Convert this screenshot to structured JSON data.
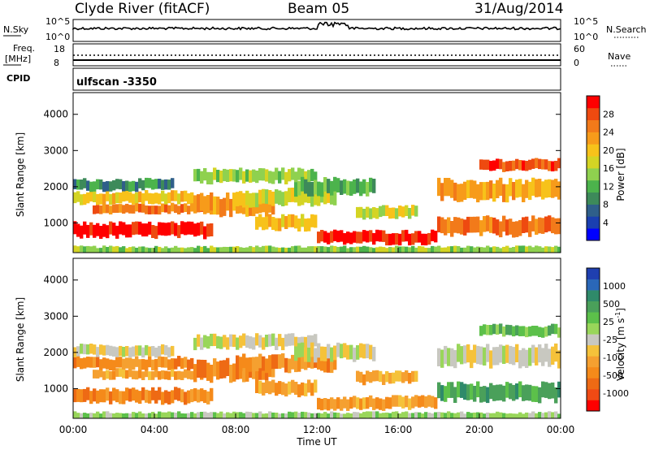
{
  "header": {
    "station": "Clyde River (fitACF)",
    "beam": "Beam 05",
    "date": "31/Aug/2014"
  },
  "panels": {
    "nsky_label": "N.Sky",
    "nsearch_label": "N.Search",
    "count_ticks": [
      "10^5",
      "10^0"
    ],
    "freq_label_1": "Freq.",
    "freq_label_2": "[MHz]",
    "freq_ticks": [
      "18",
      "8"
    ],
    "nave_label": "Nave",
    "nave_ticks": [
      "60",
      "0"
    ],
    "cpid_label": "CPID",
    "cpid_value": "ulfscan -3350"
  },
  "chart_data": [
    {
      "type": "heatmap",
      "name": "power",
      "ylabel": "Slant Range [km]",
      "yticks": [
        1000,
        2000,
        3000,
        4000
      ],
      "ylim": [
        180,
        4600
      ],
      "xticks": [
        "00:00",
        "04:00",
        "08:00",
        "12:00",
        "16:00",
        "20:00",
        "00:00"
      ],
      "xlim_hours": [
        0,
        24
      ],
      "colorbar": {
        "label": "Power [dB]",
        "ticks": [
          4,
          8,
          12,
          16,
          20,
          24,
          28
        ],
        "range": [
          0,
          30
        ],
        "colors": [
          "#0000ff",
          "#1a3fb0",
          "#2f5f8a",
          "#3d8a5a",
          "#4cb34c",
          "#8fd14f",
          "#d4d424",
          "#f7c21a",
          "#f79b1a",
          "#f27a1a",
          "#ee4a10",
          "#ff0000"
        ]
      }
    },
    {
      "type": "heatmap",
      "name": "velocity",
      "ylabel": "Slant Range [km]",
      "yticks": [
        1000,
        2000,
        3000,
        4000
      ],
      "ylim": [
        180,
        4600
      ],
      "xticks": [
        "00:00",
        "04:00",
        "08:00",
        "12:00",
        "16:00",
        "20:00",
        "00:00"
      ],
      "xlabel": "Time UT",
      "colorbar": {
        "label": "Velocity [m s^-1]",
        "ticks": [
          "1000",
          "500",
          "25",
          "-25",
          "-100",
          "-500",
          "-1000"
        ],
        "colors": [
          "#1f3fb0",
          "#2a67b8",
          "#2f8a6a",
          "#4aa05a",
          "#5cc04a",
          "#99d65a",
          "#c8c8c0",
          "#f5c23a",
          "#f5a030",
          "#f58a1a",
          "#ee6a14",
          "#f04a14",
          "#ff0000"
        ]
      }
    }
  ]
}
